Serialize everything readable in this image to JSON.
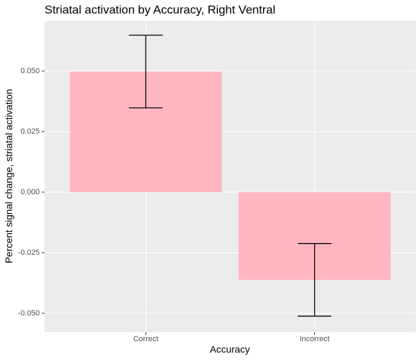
{
  "chart_data": {
    "type": "bar",
    "title": "Striatal activation by Accuracy, Right Ventral",
    "x_label": "Accuracy",
    "y_label": "Percent signal change, striatal activation",
    "categories": [
      "Correct",
      "Incorrect"
    ],
    "values": [
      0.0498,
      -0.0362
    ],
    "errors": [
      0.015,
      0.015
    ],
    "color": "#ffb6c1",
    "error_color": "#000000",
    "ylim": [
      -0.0578,
      0.0707
    ],
    "yticks": [
      {
        "value": -0.05,
        "label": "-0.050"
      },
      {
        "value": -0.025,
        "label": "-0.025"
      },
      {
        "value": 0,
        "label": "0.000"
      },
      {
        "value": 0.025,
        "label": "0.025"
      },
      {
        "value": 0.05,
        "label": "0.050"
      }
    ],
    "grid": true
  }
}
